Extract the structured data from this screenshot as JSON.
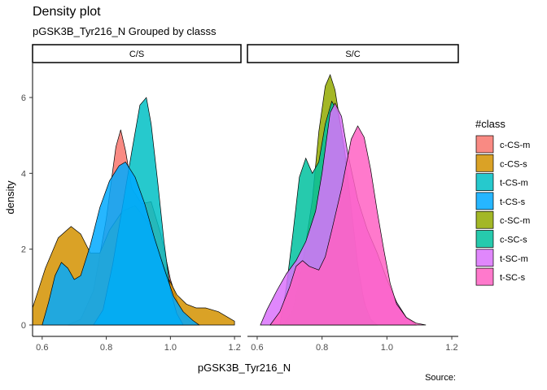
{
  "title": "Density plot",
  "subtitle": "pGSK3B_Tyr216_N Grouped by classs",
  "source": "Source:",
  "chart_data": {
    "type": "area",
    "xlabel": "pGSK3B_Tyr216_N",
    "ylabel": "density",
    "xlim": [
      0.57,
      1.22
    ],
    "ylim": [
      -0.3,
      6.9
    ],
    "x_ticks": [
      0.6,
      0.8,
      1.0,
      1.2
    ],
    "x_tick_labels": [
      "0.6",
      "0.8",
      "1.0",
      "1.2"
    ],
    "y_ticks": [
      0,
      2,
      4,
      6
    ],
    "y_tick_labels": [
      "0",
      "2",
      "4",
      "6"
    ],
    "legend": {
      "title": "#class",
      "position": "right"
    },
    "grid": false,
    "facets": [
      {
        "label": "C/S",
        "series": [
          {
            "name": "c-CS-m",
            "color": "#F8766D",
            "points": [
              [
                0.68,
                0
              ],
              [
                0.72,
                0.15
              ],
              [
                0.76,
                0.9
              ],
              [
                0.8,
                2.8
              ],
              [
                0.83,
                4.7
              ],
              [
                0.845,
                5.15
              ],
              [
                0.86,
                4.6
              ],
              [
                0.88,
                3.6
              ],
              [
                0.91,
                3.2
              ],
              [
                0.94,
                3.25
              ],
              [
                0.97,
                2.4
              ],
              [
                1.0,
                1.2
              ],
              [
                1.03,
                0.4
              ],
              [
                1.06,
                0.1
              ],
              [
                1.08,
                0
              ]
            ]
          },
          {
            "name": "c-CS-s",
            "color": "#D39200",
            "points": [
              [
                0.57,
                0.45
              ],
              [
                0.61,
                1.5
              ],
              [
                0.65,
                2.3
              ],
              [
                0.69,
                2.6
              ],
              [
                0.72,
                2.4
              ],
              [
                0.75,
                1.9
              ],
              [
                0.78,
                1.9
              ],
              [
                0.81,
                2.5
              ],
              [
                0.85,
                3.0
              ],
              [
                0.89,
                3.15
              ],
              [
                0.93,
                2.7
              ],
              [
                0.96,
                2.0
              ],
              [
                0.99,
                1.3
              ],
              [
                1.02,
                0.8
              ],
              [
                1.05,
                0.55
              ],
              [
                1.08,
                0.45
              ],
              [
                1.11,
                0.45
              ],
              [
                1.15,
                0.35
              ],
              [
                1.2,
                0.1
              ]
            ]
          },
          {
            "name": "t-CS-m",
            "color": "#00BFC4",
            "points": [
              [
                0.76,
                0
              ],
              [
                0.79,
                0.4
              ],
              [
                0.82,
                1.6
              ],
              [
                0.85,
                3.1
              ],
              [
                0.88,
                4.6
              ],
              [
                0.905,
                5.8
              ],
              [
                0.925,
                6.0
              ],
              [
                0.94,
                5.3
              ],
              [
                0.96,
                3.8
              ],
              [
                0.98,
                2.2
              ],
              [
                1.0,
                0.9
              ],
              [
                1.02,
                0.3
              ],
              [
                1.04,
                0
              ]
            ]
          },
          {
            "name": "t-CS-s",
            "color": "#00A9FF",
            "points": [
              [
                0.6,
                0
              ],
              [
                0.62,
                0.6
              ],
              [
                0.64,
                1.3
              ],
              [
                0.66,
                1.65
              ],
              [
                0.68,
                1.5
              ],
              [
                0.7,
                1.2
              ],
              [
                0.72,
                1.3
              ],
              [
                0.75,
                2.1
              ],
              [
                0.78,
                3.1
              ],
              [
                0.81,
                3.8
              ],
              [
                0.84,
                4.2
              ],
              [
                0.86,
                4.3
              ],
              [
                0.89,
                3.9
              ],
              [
                0.92,
                3.2
              ],
              [
                0.95,
                2.3
              ],
              [
                0.98,
                1.5
              ],
              [
                1.01,
                0.75
              ],
              [
                1.04,
                0.35
              ],
              [
                1.07,
                0.12
              ],
              [
                1.09,
                0
              ]
            ]
          }
        ]
      },
      {
        "label": "S/C",
        "series": [
          {
            "name": "c-SC-m",
            "color": "#93AA00",
            "points": [
              [
                0.68,
                0
              ],
              [
                0.71,
                0.4
              ],
              [
                0.74,
                1.6
              ],
              [
                0.77,
                3.3
              ],
              [
                0.79,
                5.1
              ],
              [
                0.81,
                6.3
              ],
              [
                0.825,
                6.6
              ],
              [
                0.84,
                6.2
              ],
              [
                0.86,
                5.1
              ],
              [
                0.88,
                3.7
              ],
              [
                0.9,
                2.2
              ],
              [
                0.92,
                1.0
              ],
              [
                0.94,
                0.3
              ],
              [
                0.96,
                0
              ]
            ]
          },
          {
            "name": "c-SC-s",
            "color": "#00C19F",
            "points": [
              [
                0.67,
                0
              ],
              [
                0.69,
                1.0
              ],
              [
                0.71,
                2.4
              ],
              [
                0.73,
                3.9
              ],
              [
                0.75,
                4.4
              ],
              [
                0.77,
                4.0
              ],
              [
                0.79,
                4.3
              ],
              [
                0.81,
                5.3
              ],
              [
                0.83,
                5.9
              ],
              [
                0.85,
                5.6
              ],
              [
                0.87,
                4.6
              ],
              [
                0.89,
                3.1
              ],
              [
                0.91,
                1.6
              ],
              [
                0.93,
                0.6
              ],
              [
                0.95,
                0.15
              ],
              [
                0.97,
                0
              ]
            ]
          },
          {
            "name": "t-SC-m",
            "color": "#DB72FB",
            "points": [
              [
                0.61,
                0
              ],
              [
                0.63,
                0.4
              ],
              [
                0.66,
                0.9
              ],
              [
                0.69,
                1.35
              ],
              [
                0.72,
                1.7
              ],
              [
                0.75,
                2.2
              ],
              [
                0.78,
                3.0
              ],
              [
                0.8,
                4.0
              ],
              [
                0.825,
                5.6
              ],
              [
                0.84,
                5.85
              ],
              [
                0.86,
                5.5
              ],
              [
                0.88,
                4.5
              ],
              [
                0.91,
                3.3
              ],
              [
                0.94,
                2.5
              ],
              [
                0.97,
                1.9
              ],
              [
                1.0,
                1.2
              ],
              [
                1.03,
                0.6
              ],
              [
                1.06,
                0.2
              ],
              [
                1.09,
                0
              ]
            ]
          },
          {
            "name": "t-SC-s",
            "color": "#FF61C3",
            "points": [
              [
                0.64,
                0
              ],
              [
                0.67,
                0.35
              ],
              [
                0.7,
                1.0
              ],
              [
                0.72,
                1.55
              ],
              [
                0.74,
                1.7
              ],
              [
                0.76,
                1.55
              ],
              [
                0.79,
                1.45
              ],
              [
                0.81,
                1.8
              ],
              [
                0.83,
                2.5
              ],
              [
                0.86,
                3.6
              ],
              [
                0.89,
                4.9
              ],
              [
                0.91,
                5.25
              ],
              [
                0.93,
                4.95
              ],
              [
                0.95,
                4.1
              ],
              [
                0.97,
                3.0
              ],
              [
                0.99,
                2.0
              ],
              [
                1.01,
                1.1
              ],
              [
                1.03,
                0.55
              ],
              [
                1.06,
                0.2
              ],
              [
                1.09,
                0.05
              ],
              [
                1.12,
                0
              ]
            ]
          }
        ]
      }
    ]
  }
}
